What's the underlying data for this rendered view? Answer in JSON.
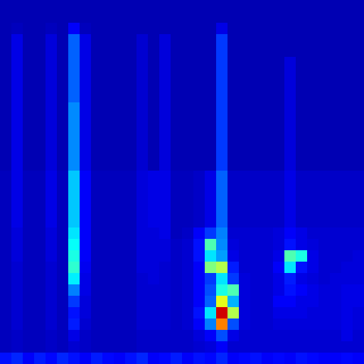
{
  "chart_data": {
    "type": "heatmap",
    "tick_labels": false,
    "zlim": [
      0,
      100
    ],
    "cells": [
      [
        5,
        5,
        5,
        5,
        5,
        5,
        5,
        5,
        5,
        5,
        5,
        5,
        5,
        5,
        5,
        5,
        5,
        5,
        5,
        5,
        5,
        5,
        5,
        5,
        5,
        5,
        5,
        5,
        5,
        5,
        5,
        5
      ],
      [
        5,
        5,
        5,
        5,
        5,
        5,
        5,
        5,
        5,
        5,
        5,
        5,
        5,
        5,
        5,
        5,
        5,
        5,
        5,
        5,
        5,
        5,
        5,
        5,
        5,
        5,
        5,
        5,
        5,
        5,
        5,
        5
      ],
      [
        5,
        6,
        5,
        5,
        6,
        5,
        12,
        6,
        5,
        5,
        5,
        5,
        5,
        5,
        5,
        5,
        5,
        5,
        5,
        10,
        5,
        5,
        5,
        5,
        5,
        5,
        5,
        5,
        5,
        5,
        5,
        5
      ],
      [
        5,
        10,
        5,
        5,
        9,
        5,
        22,
        10,
        5,
        5,
        5,
        5,
        8,
        5,
        9,
        5,
        5,
        5,
        5,
        18,
        5,
        5,
        5,
        5,
        5,
        5,
        5,
        5,
        5,
        5,
        5,
        5
      ],
      [
        5,
        10,
        5,
        5,
        9,
        5,
        22,
        10,
        5,
        5,
        5,
        5,
        8,
        5,
        9,
        5,
        5,
        5,
        5,
        18,
        5,
        5,
        5,
        5,
        5,
        5,
        5,
        5,
        5,
        5,
        5,
        5
      ],
      [
        5,
        10,
        5,
        5,
        9,
        5,
        22,
        10,
        5,
        5,
        5,
        5,
        8,
        5,
        9,
        5,
        5,
        5,
        5,
        18,
        5,
        5,
        5,
        5,
        5,
        9,
        5,
        5,
        5,
        5,
        5,
        5
      ],
      [
        5,
        10,
        5,
        5,
        9,
        5,
        22,
        10,
        5,
        5,
        5,
        5,
        8,
        5,
        9,
        5,
        5,
        5,
        5,
        18,
        5,
        5,
        5,
        5,
        5,
        9,
        5,
        5,
        5,
        5,
        5,
        5
      ],
      [
        5,
        10,
        5,
        5,
        9,
        5,
        22,
        10,
        5,
        5,
        5,
        5,
        8,
        5,
        9,
        5,
        5,
        5,
        5,
        18,
        5,
        5,
        5,
        5,
        5,
        9,
        5,
        5,
        5,
        5,
        5,
        5
      ],
      [
        5,
        10,
        5,
        5,
        9,
        5,
        22,
        10,
        5,
        5,
        5,
        5,
        8,
        5,
        9,
        5,
        5,
        5,
        5,
        18,
        5,
        5,
        5,
        5,
        5,
        9,
        5,
        5,
        5,
        5,
        5,
        5
      ],
      [
        5,
        10,
        5,
        5,
        9,
        5,
        26,
        10,
        5,
        5,
        5,
        5,
        8,
        5,
        9,
        5,
        5,
        5,
        5,
        18,
        5,
        5,
        5,
        5,
        5,
        9,
        5,
        5,
        5,
        5,
        5,
        5
      ],
      [
        5,
        10,
        5,
        5,
        9,
        5,
        26,
        10,
        5,
        5,
        5,
        5,
        8,
        5,
        9,
        5,
        5,
        5,
        5,
        18,
        5,
        5,
        5,
        5,
        5,
        9,
        5,
        5,
        5,
        5,
        5,
        5
      ],
      [
        5,
        10,
        5,
        5,
        9,
        5,
        26,
        10,
        5,
        5,
        5,
        5,
        8,
        5,
        9,
        5,
        5,
        5,
        5,
        18,
        5,
        5,
        5,
        5,
        5,
        9,
        5,
        5,
        5,
        5,
        5,
        5
      ],
      [
        5,
        10,
        5,
        5,
        9,
        5,
        26,
        10,
        5,
        5,
        5,
        5,
        8,
        5,
        9,
        5,
        5,
        5,
        5,
        18,
        5,
        5,
        5,
        5,
        5,
        9,
        5,
        5,
        5,
        5,
        5,
        5
      ],
      [
        5,
        10,
        5,
        5,
        9,
        5,
        26,
        10,
        5,
        5,
        5,
        5,
        8,
        5,
        9,
        5,
        5,
        5,
        5,
        18,
        5,
        5,
        5,
        5,
        5,
        9,
        5,
        5,
        5,
        5,
        5,
        5
      ],
      [
        5,
        10,
        5,
        5,
        9,
        5,
        26,
        10,
        5,
        5,
        5,
        5,
        8,
        5,
        9,
        5,
        5,
        5,
        5,
        18,
        5,
        5,
        5,
        5,
        5,
        9,
        5,
        5,
        5,
        5,
        5,
        5
      ],
      [
        6,
        10,
        6,
        6,
        10,
        6,
        32,
        12,
        6,
        6,
        6,
        6,
        9,
        10,
        10,
        6,
        6,
        7,
        10,
        22,
        7,
        7,
        7,
        7,
        7,
        10,
        7,
        7,
        7,
        7,
        7,
        7
      ],
      [
        6,
        10,
        6,
        6,
        10,
        6,
        32,
        12,
        6,
        6,
        6,
        6,
        9,
        10,
        10,
        6,
        6,
        7,
        10,
        22,
        7,
        7,
        7,
        7,
        7,
        10,
        7,
        7,
        7,
        7,
        7,
        7
      ],
      [
        6,
        10,
        6,
        6,
        10,
        6,
        32,
        12,
        6,
        6,
        6,
        6,
        9,
        10,
        10,
        6,
        6,
        7,
        10,
        22,
        7,
        7,
        7,
        7,
        7,
        10,
        7,
        7,
        7,
        7,
        7,
        7
      ],
      [
        6,
        10,
        6,
        6,
        10,
        6,
        32,
        12,
        6,
        6,
        6,
        6,
        9,
        10,
        10,
        6,
        6,
        7,
        10,
        22,
        7,
        7,
        7,
        7,
        7,
        10,
        7,
        7,
        7,
        7,
        7,
        7
      ],
      [
        6,
        10,
        6,
        6,
        10,
        6,
        32,
        12,
        6,
        6,
        6,
        6,
        9,
        10,
        10,
        6,
        6,
        7,
        10,
        22,
        7,
        7,
        7,
        7,
        7,
        10,
        7,
        7,
        7,
        7,
        7,
        7
      ],
      [
        6,
        9,
        6,
        6,
        9,
        6,
        35,
        12,
        6,
        6,
        6,
        6,
        9,
        9,
        10,
        6,
        7,
        12,
        18,
        25,
        8,
        8,
        8,
        8,
        9,
        12,
        10,
        8,
        8,
        8,
        8,
        8
      ],
      [
        6,
        9,
        6,
        6,
        9,
        6,
        38,
        12,
        6,
        6,
        6,
        6,
        9,
        9,
        9,
        7,
        8,
        14,
        45,
        26,
        9,
        8,
        8,
        8,
        9,
        14,
        10,
        9,
        8,
        8,
        8,
        8
      ],
      [
        6,
        9,
        6,
        6,
        9,
        6,
        40,
        12,
        6,
        6,
        6,
        6,
        9,
        9,
        9,
        7,
        8,
        14,
        35,
        28,
        10,
        8,
        8,
        8,
        10,
        45,
        40,
        10,
        8,
        8,
        8,
        9
      ],
      [
        6,
        8,
        6,
        6,
        8,
        6,
        42,
        11,
        6,
        6,
        6,
        6,
        9,
        9,
        8,
        7,
        8,
        12,
        50,
        55,
        15,
        8,
        8,
        8,
        12,
        35,
        14,
        10,
        8,
        8,
        9,
        9
      ],
      [
        6,
        8,
        6,
        6,
        8,
        6,
        36,
        10,
        6,
        6,
        6,
        6,
        8,
        9,
        8,
        7,
        8,
        12,
        18,
        35,
        18,
        9,
        8,
        8,
        10,
        15,
        10,
        9,
        8,
        9,
        9,
        9
      ],
      [
        6,
        8,
        6,
        6,
        8,
        6,
        25,
        10,
        6,
        6,
        6,
        6,
        8,
        8,
        8,
        7,
        8,
        12,
        20,
        40,
        45,
        9,
        8,
        8,
        10,
        14,
        12,
        10,
        9,
        9,
        10,
        10
      ],
      [
        6,
        8,
        6,
        6,
        8,
        6,
        18,
        9,
        6,
        6,
        6,
        6,
        8,
        8,
        8,
        7,
        8,
        12,
        22,
        60,
        30,
        9,
        8,
        8,
        12,
        12,
        10,
        10,
        9,
        9,
        10,
        10
      ],
      [
        6,
        8,
        6,
        6,
        8,
        6,
        14,
        9,
        6,
        6,
        6,
        6,
        8,
        8,
        8,
        7,
        8,
        14,
        35,
        92,
        55,
        9,
        8,
        8,
        10,
        10,
        10,
        9,
        9,
        9,
        10,
        9
      ],
      [
        6,
        8,
        6,
        6,
        8,
        6,
        15,
        8,
        6,
        6,
        6,
        6,
        8,
        8,
        8,
        7,
        8,
        12,
        25,
        75,
        20,
        9,
        8,
        8,
        9,
        9,
        9,
        9,
        9,
        9,
        10,
        9
      ],
      [
        6,
        7,
        6,
        6,
        7,
        6,
        10,
        7,
        6,
        6,
        6,
        6,
        7,
        7,
        7,
        7,
        7,
        9,
        12,
        20,
        10,
        8,
        8,
        8,
        8,
        8,
        8,
        8,
        8,
        8,
        10,
        8
      ],
      [
        6,
        7,
        6,
        6,
        7,
        6,
        8,
        7,
        6,
        6,
        6,
        6,
        7,
        7,
        7,
        7,
        7,
        8,
        9,
        12,
        8,
        8,
        8,
        8,
        8,
        8,
        8,
        8,
        8,
        8,
        8,
        8
      ],
      [
        14,
        16,
        12,
        15,
        13,
        16,
        14,
        12,
        15,
        13,
        12,
        14,
        16,
        12,
        13,
        15,
        12,
        14,
        13,
        16,
        12,
        13,
        14,
        12,
        13,
        12,
        14,
        13,
        12,
        12,
        13,
        12
      ]
    ]
  }
}
